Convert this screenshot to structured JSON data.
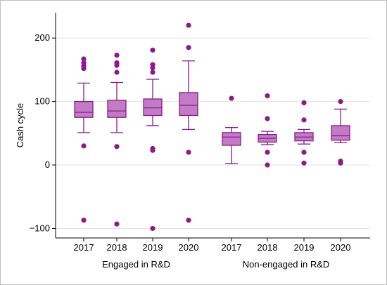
{
  "chart_data": {
    "type": "box",
    "title": "",
    "ylabel": "Cash cycle",
    "xlabel": "",
    "ylim": [
      -115,
      240
    ],
    "yticks": [
      -100,
      0,
      100,
      200
    ],
    "ytick_labels": [
      "−100",
      "0",
      "100",
      "200"
    ],
    "grid": true,
    "groups": [
      "Engaged in R&D",
      "Non-engaged in R&D"
    ],
    "color": "#8B1A8B",
    "fill": "#C27CC5",
    "boxes": [
      {
        "group": "Engaged in R&D",
        "category": "2017",
        "whisker_low": 51,
        "q1": 75,
        "median": 83,
        "q3": 100,
        "whisker_high": 129,
        "outliers": [
          167,
          161,
          156,
          152,
          30,
          -87
        ]
      },
      {
        "group": "Engaged in R&D",
        "category": "2018",
        "whisker_low": 51,
        "q1": 75,
        "median": 85,
        "q3": 102,
        "whisker_high": 130,
        "outliers": [
          173,
          161,
          157,
          146,
          29,
          -93
        ]
      },
      {
        "group": "Engaged in R&D",
        "category": "2019",
        "whisker_low": 62,
        "q1": 78,
        "median": 90,
        "q3": 104,
        "whisker_high": 135,
        "outliers": [
          181,
          158,
          153,
          146,
          26,
          23,
          -100
        ]
      },
      {
        "group": "Engaged in R&D",
        "category": "2020",
        "whisker_low": 56,
        "q1": 78,
        "median": 94,
        "q3": 114,
        "whisker_high": 164,
        "outliers": [
          220,
          185,
          20,
          -87
        ]
      },
      {
        "group": "Non-engaged in R&D",
        "category": "2017",
        "whisker_low": 2,
        "q1": 31,
        "median": 44,
        "q3": 51,
        "whisker_high": 59,
        "outliers": [
          105
        ]
      },
      {
        "group": "Non-engaged in R&D",
        "category": "2018",
        "whisker_low": 32,
        "q1": 36,
        "median": 42,
        "q3": 48,
        "whisker_high": 53,
        "outliers": [
          109,
          73,
          20,
          0
        ]
      },
      {
        "group": "Non-engaged in R&D",
        "category": "2019",
        "whisker_low": 33,
        "q1": 38,
        "median": 44,
        "q3": 51,
        "whisker_high": 56,
        "outliers": [
          98,
          71,
          20,
          3
        ]
      },
      {
        "group": "Non-engaged in R&D",
        "category": "2020",
        "whisker_low": 35,
        "q1": 39,
        "median": 46,
        "q3": 62,
        "whisker_high": 88,
        "outliers": [
          100,
          6,
          3
        ]
      }
    ]
  }
}
